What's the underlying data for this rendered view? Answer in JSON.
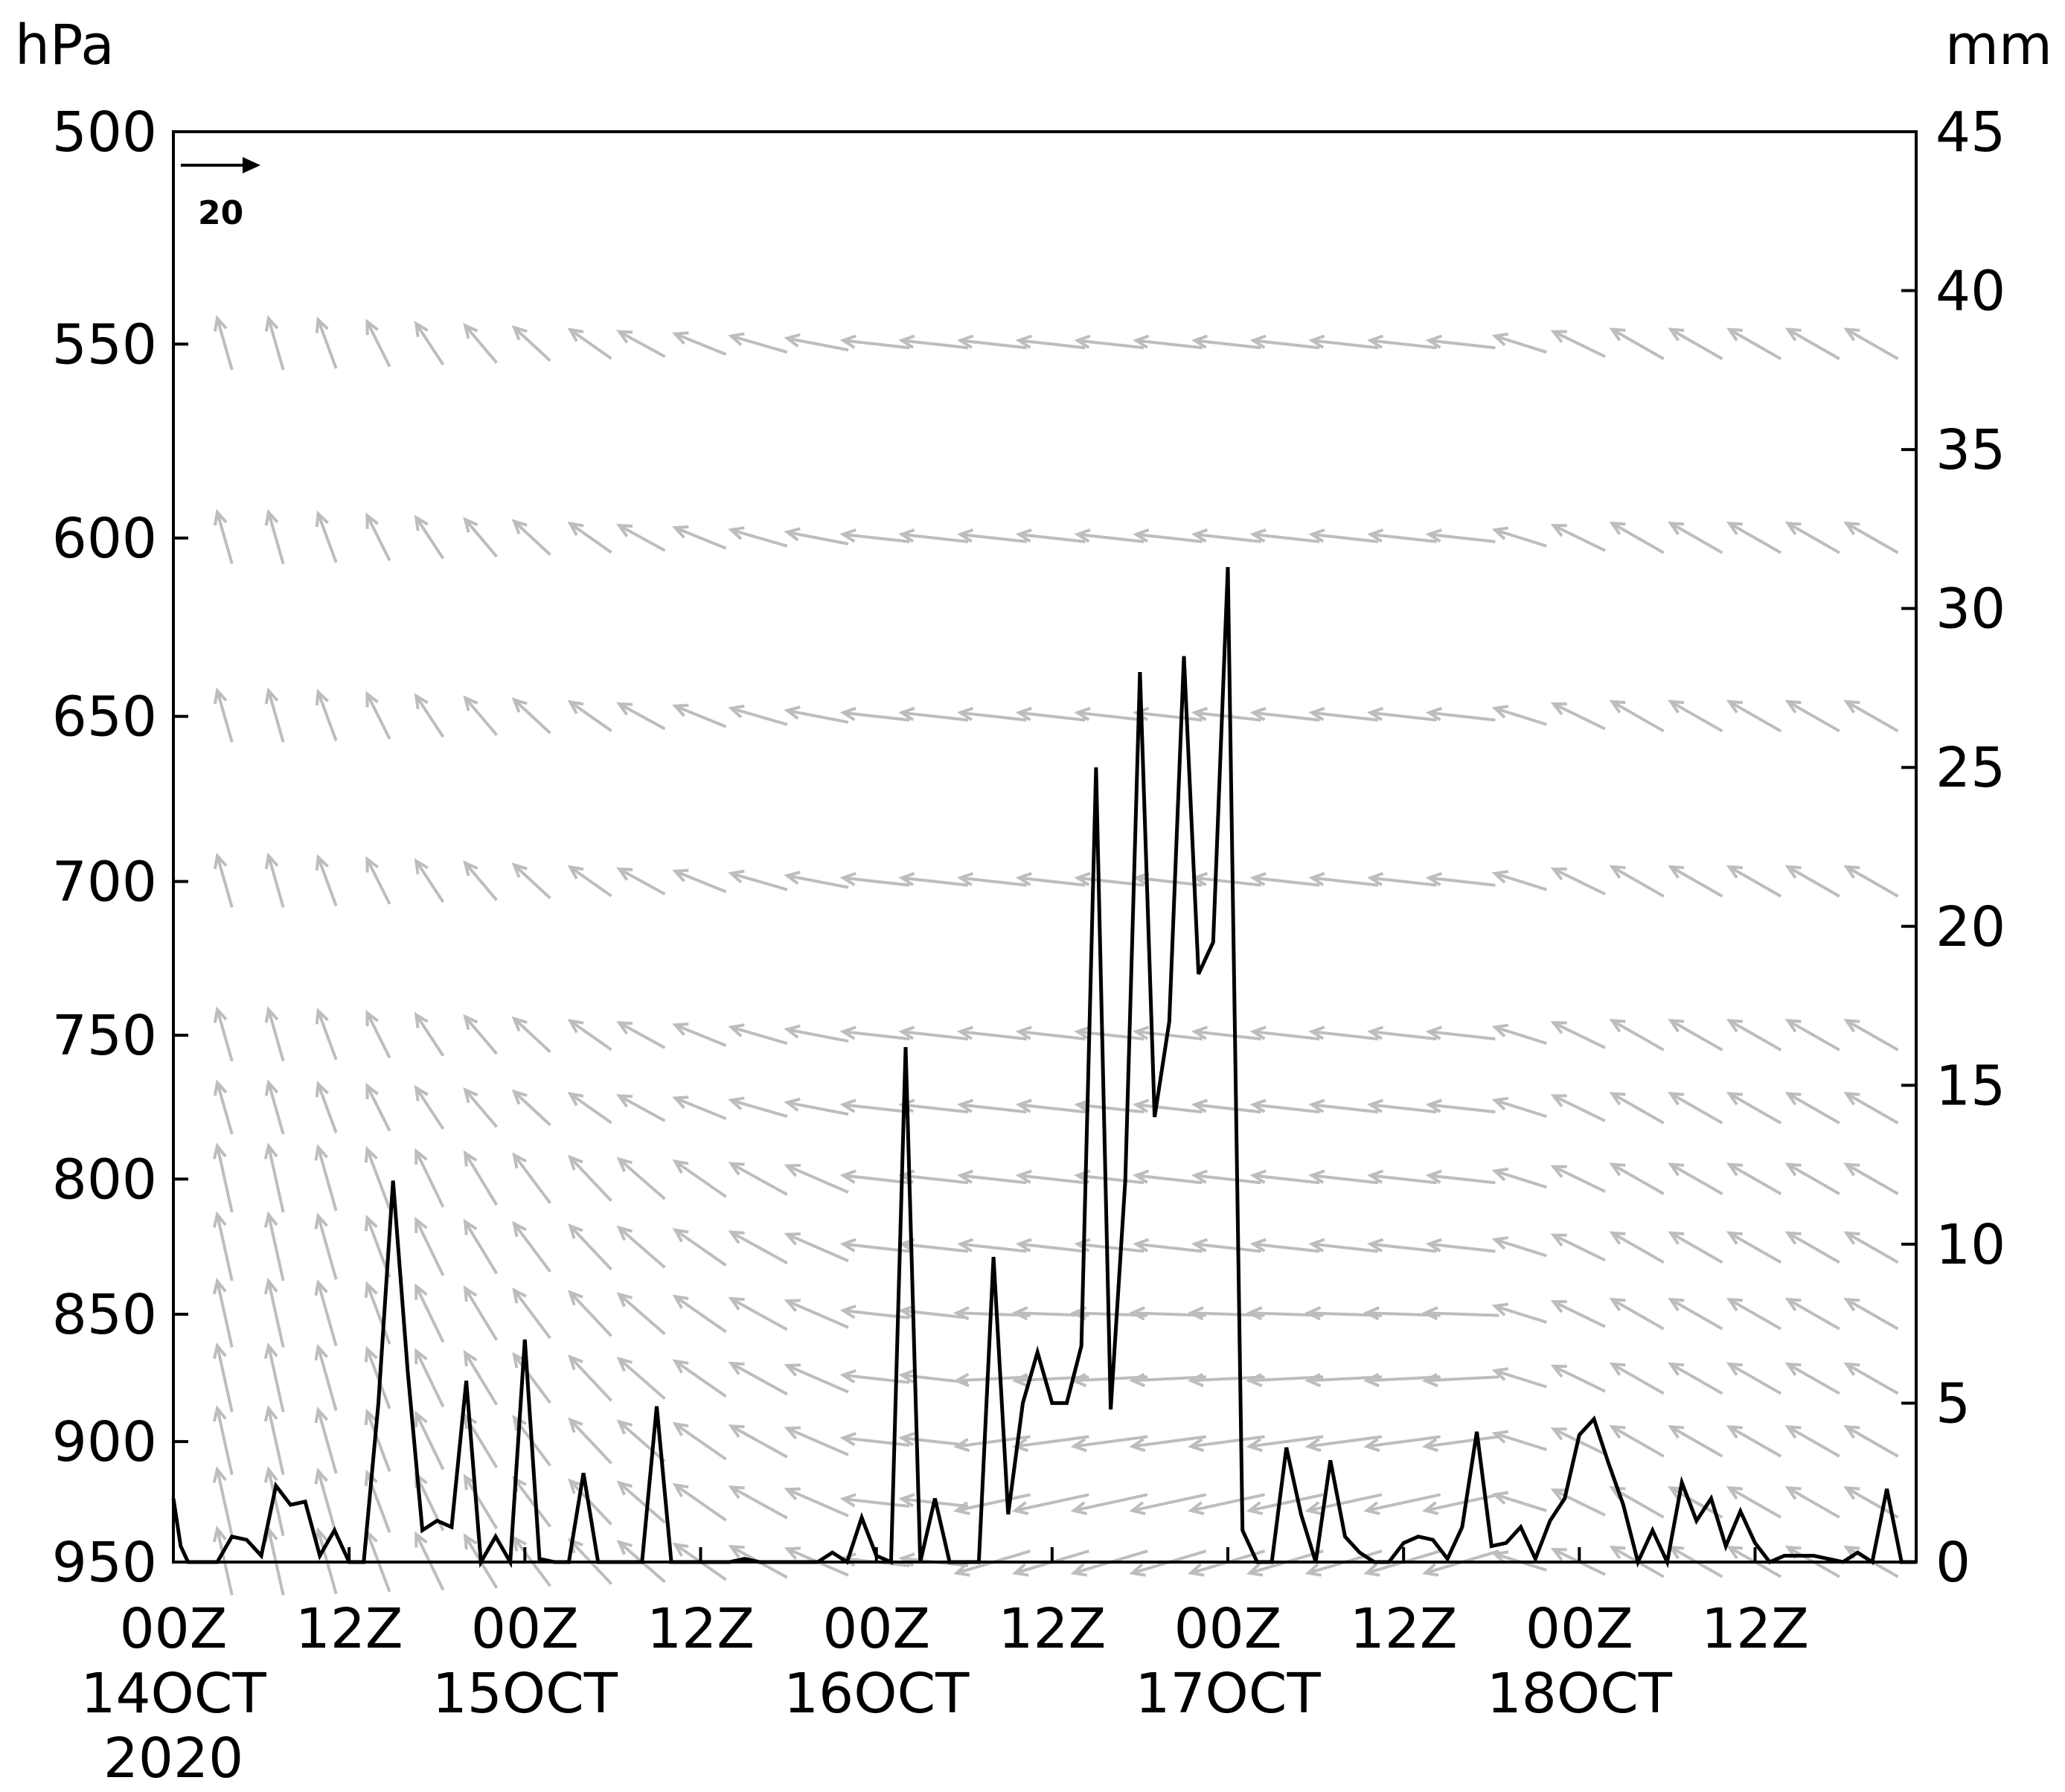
{
  "chart_data": {
    "type": "line",
    "title": "",
    "left_axis": {
      "label": "hPa",
      "ticks": [
        500,
        550,
        600,
        650,
        700,
        750,
        800,
        850,
        900,
        950
      ],
      "range": [
        500,
        950
      ],
      "scale": "log-pressure",
      "direction": "increasing downward"
    },
    "right_axis": {
      "label": "mm",
      "ticks": [
        0,
        5,
        10,
        15,
        20,
        25,
        30,
        35,
        40,
        45
      ],
      "range": [
        0,
        45
      ]
    },
    "x_axis": {
      "range_hours": [
        0,
        119
      ],
      "ticks": [
        {
          "hour": 0,
          "line1": "00Z",
          "line2": "14OCT",
          "line3": "2020"
        },
        {
          "hour": 12,
          "line1": "12Z",
          "line2": "",
          "line3": ""
        },
        {
          "hour": 24,
          "line1": "00Z",
          "line2": "15OCT",
          "line3": ""
        },
        {
          "hour": 36,
          "line1": "12Z",
          "line2": "",
          "line3": ""
        },
        {
          "hour": 48,
          "line1": "00Z",
          "line2": "16OCT",
          "line3": ""
        },
        {
          "hour": 60,
          "line1": "12Z",
          "line2": "",
          "line3": ""
        },
        {
          "hour": 72,
          "line1": "00Z",
          "line2": "17OCT",
          "line3": ""
        },
        {
          "hour": 84,
          "line1": "12Z",
          "line2": "",
          "line3": ""
        },
        {
          "hour": 96,
          "line1": "00Z",
          "line2": "18OCT",
          "line3": ""
        },
        {
          "hour": 108,
          "line1": "12Z",
          "line2": "",
          "line3": ""
        }
      ]
    },
    "reference_vector": {
      "label": "20",
      "magnitude": 20
    },
    "precip_series": {
      "units": "mm",
      "color": "#000000",
      "points": [
        [
          0,
          2
        ],
        [
          0.5,
          0.5
        ],
        [
          1,
          0
        ],
        [
          2,
          0
        ],
        [
          3,
          0
        ],
        [
          4,
          0.8
        ],
        [
          5,
          0.7
        ],
        [
          6,
          0.2
        ],
        [
          7,
          2.4
        ],
        [
          8,
          1.8
        ],
        [
          9,
          1.9
        ],
        [
          10,
          0.2
        ],
        [
          11,
          1
        ],
        [
          12,
          0
        ],
        [
          13,
          0
        ],
        [
          14,
          5
        ],
        [
          15,
          12
        ],
        [
          16,
          6
        ],
        [
          17,
          1
        ],
        [
          18,
          1.3
        ],
        [
          19,
          1.1
        ],
        [
          20,
          5.7
        ],
        [
          21,
          0
        ],
        [
          22,
          0.8
        ],
        [
          23,
          0
        ],
        [
          24,
          7
        ],
        [
          25,
          0.1
        ],
        [
          26,
          0
        ],
        [
          27,
          0
        ],
        [
          28,
          2.8
        ],
        [
          29,
          0
        ],
        [
          30,
          0
        ],
        [
          31,
          0
        ],
        [
          32,
          0
        ],
        [
          33,
          4.9
        ],
        [
          34,
          0
        ],
        [
          35,
          0
        ],
        [
          36,
          0
        ],
        [
          37,
          0
        ],
        [
          38,
          0
        ],
        [
          39,
          0.1
        ],
        [
          40,
          0
        ],
        [
          41,
          0
        ],
        [
          42,
          0
        ],
        [
          43,
          0
        ],
        [
          44,
          0
        ],
        [
          45,
          0.3
        ],
        [
          46,
          0
        ],
        [
          47,
          1.4
        ],
        [
          48,
          0.2
        ],
        [
          49,
          0
        ],
        [
          50,
          16.2
        ],
        [
          51,
          0
        ],
        [
          52,
          2
        ],
        [
          53,
          0
        ],
        [
          54,
          0
        ],
        [
          55,
          0
        ],
        [
          56,
          9.6
        ],
        [
          57,
          1.5
        ],
        [
          58,
          5
        ],
        [
          59,
          6.6
        ],
        [
          60,
          5
        ],
        [
          61,
          5
        ],
        [
          62,
          6.8
        ],
        [
          63,
          25
        ],
        [
          64,
          4.8
        ],
        [
          65,
          12
        ],
        [
          66,
          28
        ],
        [
          67,
          14
        ],
        [
          68,
          17
        ],
        [
          69,
          28.5
        ],
        [
          70,
          18.5
        ],
        [
          71,
          19.5
        ],
        [
          72,
          31.3
        ],
        [
          73,
          1
        ],
        [
          74,
          0
        ],
        [
          75,
          0
        ],
        [
          76,
          3.6
        ],
        [
          77,
          1.5
        ],
        [
          78,
          0
        ],
        [
          79,
          3.2
        ],
        [
          80,
          0.8
        ],
        [
          81,
          0.3
        ],
        [
          82,
          0
        ],
        [
          83,
          0
        ],
        [
          84,
          0.6
        ],
        [
          85,
          0.8
        ],
        [
          86,
          0.7
        ],
        [
          87,
          0.1
        ],
        [
          88,
          1.1
        ],
        [
          89,
          4.1
        ],
        [
          90,
          0.5
        ],
        [
          91,
          0.6
        ],
        [
          92,
          1.1
        ],
        [
          93,
          0.1
        ],
        [
          94,
          1.3
        ],
        [
          95,
          2
        ],
        [
          96,
          4
        ],
        [
          97,
          4.5
        ],
        [
          98,
          3.1
        ],
        [
          99,
          1.8
        ],
        [
          100,
          0
        ],
        [
          101,
          1
        ],
        [
          102,
          0
        ],
        [
          103,
          2.5
        ],
        [
          104,
          1.3
        ],
        [
          105,
          2
        ],
        [
          106,
          0.5
        ],
        [
          107,
          1.6
        ],
        [
          108,
          0.6
        ],
        [
          109,
          0
        ],
        [
          110,
          0.2
        ],
        [
          111,
          0.2
        ],
        [
          112,
          0.2
        ],
        [
          113,
          0.1
        ],
        [
          114,
          0
        ],
        [
          115,
          0.3
        ],
        [
          116,
          0
        ],
        [
          117,
          2.3
        ],
        [
          118,
          0
        ],
        [
          119,
          0
        ]
      ]
    },
    "wind_field": {
      "color": "#bdbdbd",
      "levels_hpa": [
        550,
        600,
        650,
        700,
        750,
        775,
        800,
        825,
        850,
        875,
        900,
        925,
        950
      ],
      "columns_hours": [
        0,
        3.5,
        7,
        10.5,
        14,
        17.5,
        21,
        24.5,
        28.5,
        32,
        36,
        40,
        44,
        48,
        52,
        56,
        60,
        64,
        68,
        72,
        76,
        80,
        84,
        88,
        92,
        96,
        100,
        104,
        108,
        112,
        116
      ],
      "note": "Wind vectors; direction shown by arrows, speed shown by arrow length (reference arrow = 20)"
    }
  }
}
